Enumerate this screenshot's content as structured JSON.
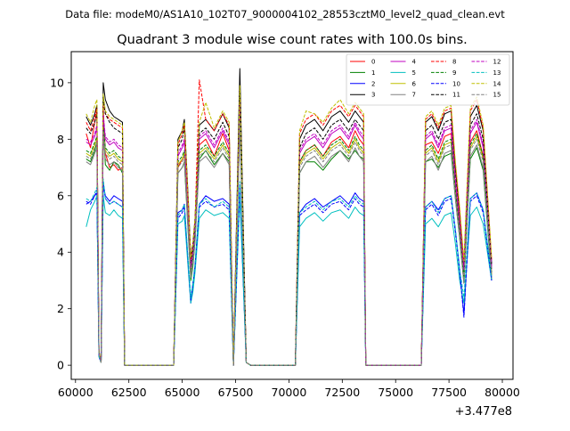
{
  "figure": {
    "suptitle": "Data file: modeM0/AS1A10_102T07_9000004102_28553cztM0_level2_quad_clean.evt",
    "title": "Quadrant 3 module wise count rates with 100.0s bins."
  },
  "chart_data": {
    "type": "line",
    "title": "Quadrant 3 module wise count rates with 100.0s bins.",
    "xlabel": "",
    "ylabel": "",
    "x_offset_label": "+3.477e8",
    "xlim": [
      59800,
      80500
    ],
    "ylim": [
      -0.5,
      11.1
    ],
    "xticks": [
      60000,
      62500,
      65000,
      67500,
      70000,
      72500,
      75000,
      77500,
      80000
    ],
    "xtick_labels": [
      "60000",
      "62500",
      "65000",
      "67500",
      "70000",
      "72500",
      "75000",
      "77500",
      "80000"
    ],
    "yticks": [
      0,
      2,
      4,
      6,
      8,
      10
    ],
    "ytick_labels": [
      "0",
      "2",
      "4",
      "6",
      "8",
      "10"
    ],
    "grid": false,
    "legend_position": "top-right",
    "legend_columns": 4,
    "series": [
      {
        "name": "0",
        "color": "#ff0000",
        "dash": "solid",
        "values": [
          8.2,
          7.7,
          8.6,
          9.0,
          0.5,
          0.1,
          9.1,
          7.5,
          7.0,
          7.1,
          6.9,
          7.0,
          0,
          0,
          0,
          0,
          7.0,
          7.3,
          7.4,
          4.8,
          3.2,
          3.7,
          4.6,
          7.8,
          8.0,
          7.4,
          8.2,
          7.6,
          0,
          9.5,
          0.1,
          0,
          0,
          0,
          0,
          0,
          7.2,
          7.6,
          7.8,
          7.4,
          7.9,
          8.1,
          7.7,
          8.3,
          8.0,
          7.8,
          0,
          0,
          0,
          0,
          0,
          0,
          0,
          0,
          7.8,
          7.9,
          7.5,
          8.1,
          8.2,
          6.3,
          4.8,
          3.1,
          7.9,
          8.3,
          7.4,
          3.2
        ]
      },
      {
        "name": "1",
        "color": "#008000",
        "dash": "solid",
        "values": [
          7.3,
          7.2,
          7.6,
          7.9,
          0.4,
          0.1,
          8.5,
          7.1,
          6.9,
          7.2,
          7.1,
          6.8,
          0,
          0,
          0,
          0,
          6.8,
          7.0,
          7.2,
          4.4,
          3.0,
          3.5,
          4.4,
          7.3,
          7.6,
          7.1,
          7.5,
          7.2,
          0,
          8.6,
          0.1,
          0,
          0,
          0,
          0,
          0,
          6.8,
          7.2,
          7.2,
          6.9,
          7.3,
          7.6,
          7.3,
          7.6,
          7.4,
          7.3,
          0,
          0,
          0,
          0,
          0,
          0,
          0,
          0,
          7.2,
          7.3,
          7.0,
          7.4,
          7.5,
          5.9,
          4.5,
          2.9,
          7.3,
          7.7,
          6.9,
          3.0
        ]
      },
      {
        "name": "2",
        "color": "#0000ff",
        "dash": "solid",
        "values": [
          5.7,
          5.8,
          6.0,
          6.1,
          0.3,
          0.1,
          6.4,
          6.0,
          5.8,
          6.0,
          5.9,
          5.8,
          0,
          0,
          0,
          0,
          5.4,
          5.5,
          5.7,
          3.3,
          2.2,
          2.8,
          3.5,
          5.7,
          6.0,
          5.8,
          5.9,
          5.7,
          0,
          6.4,
          0.1,
          0,
          0,
          0,
          0,
          0,
          5.4,
          5.7,
          5.9,
          5.6,
          5.8,
          6.0,
          5.7,
          6.1,
          5.9,
          5.8,
          0,
          0,
          0,
          0,
          0,
          0,
          0,
          0,
          5.6,
          5.8,
          5.5,
          5.9,
          6.0,
          4.8,
          3.4,
          1.8,
          5.9,
          6.1,
          5.5,
          3.1
        ]
      },
      {
        "name": "3",
        "color": "#000000",
        "dash": "solid",
        "values": [
          8.8,
          8.5,
          8.9,
          9.2,
          0.5,
          0.1,
          10.0,
          9.4,
          9.0,
          8.8,
          8.7,
          8.6,
          0,
          0,
          0,
          0,
          8.0,
          8.3,
          8.7,
          5.6,
          3.8,
          4.3,
          5.2,
          8.5,
          8.7,
          8.3,
          8.9,
          8.4,
          0,
          10.5,
          0.1,
          0,
          0,
          0,
          0,
          0,
          8.0,
          8.5,
          8.7,
          8.3,
          8.8,
          9.0,
          8.6,
          9.0,
          8.8,
          8.6,
          0,
          0,
          0,
          0,
          0,
          0,
          0,
          0,
          8.6,
          8.8,
          8.3,
          8.9,
          9.0,
          7.0,
          5.4,
          3.5,
          8.8,
          9.2,
          8.3,
          3.6
        ]
      },
      {
        "name": "4",
        "color": "#c000c0",
        "dash": "solid",
        "values": [
          7.9,
          7.8,
          8.1,
          8.4,
          0.4,
          0.1,
          8.8,
          8.0,
          7.8,
          7.9,
          7.7,
          7.6,
          0,
          0,
          0,
          0,
          7.4,
          7.7,
          7.9,
          5.0,
          3.4,
          3.9,
          4.9,
          8.0,
          8.2,
          7.7,
          8.3,
          7.8,
          0,
          9.2,
          0.1,
          0,
          0,
          0,
          0,
          0,
          7.5,
          7.9,
          8.1,
          7.7,
          8.2,
          8.4,
          8.0,
          8.5,
          8.2,
          8.0,
          0,
          0,
          0,
          0,
          0,
          0,
          0,
          0,
          8.0,
          8.2,
          7.7,
          8.3,
          8.4,
          6.5,
          5.0,
          3.3,
          8.2,
          8.6,
          7.7,
          3.4
        ]
      },
      {
        "name": "5",
        "color": "#00bfbf",
        "dash": "solid",
        "values": [
          4.9,
          5.5,
          5.8,
          6.0,
          0.3,
          0.1,
          6.0,
          5.4,
          5.3,
          5.5,
          5.3,
          5.2,
          0,
          0,
          0,
          0,
          5.0,
          5.1,
          5.3,
          3.2,
          2.2,
          2.6,
          3.3,
          5.2,
          5.5,
          5.3,
          5.4,
          5.2,
          0,
          6.0,
          0.1,
          0,
          0,
          0,
          0,
          0,
          4.9,
          5.2,
          5.4,
          5.1,
          5.4,
          5.5,
          5.2,
          5.6,
          5.4,
          5.3,
          0,
          0,
          0,
          0,
          0,
          0,
          0,
          0,
          5.0,
          5.2,
          4.9,
          5.3,
          5.4,
          4.3,
          3.0,
          2.2,
          5.3,
          5.6,
          5.0,
          3.0
        ]
      },
      {
        "name": "6",
        "color": "#bfbf00",
        "dash": "solid",
        "values": [
          7.5,
          7.4,
          7.8,
          8.0,
          0.4,
          0.1,
          8.4,
          7.6,
          7.4,
          7.5,
          7.3,
          7.2,
          0,
          0,
          0,
          0,
          7.1,
          7.3,
          7.5,
          4.7,
          3.2,
          3.7,
          4.6,
          7.5,
          7.7,
          7.3,
          7.8,
          7.4,
          0,
          8.8,
          0.1,
          0,
          0,
          0,
          0,
          0,
          7.1,
          7.5,
          7.7,
          7.3,
          7.7,
          7.9,
          7.5,
          8.0,
          7.7,
          7.5,
          0,
          0,
          0,
          0,
          0,
          0,
          0,
          0,
          7.5,
          7.7,
          7.2,
          7.8,
          7.9,
          6.1,
          4.7,
          3.0,
          7.7,
          8.1,
          7.3,
          3.2
        ]
      },
      {
        "name": "7",
        "color": "#808080",
        "dash": "solid",
        "values": [
          7.2,
          7.1,
          7.5,
          7.7,
          0.4,
          0.1,
          8.1,
          7.3,
          7.1,
          7.2,
          7.0,
          6.9,
          0,
          0,
          0,
          0,
          6.8,
          7.0,
          7.2,
          4.5,
          3.1,
          3.6,
          4.4,
          7.2,
          7.4,
          7.0,
          7.5,
          7.1,
          0,
          8.4,
          0.1,
          0,
          0,
          0,
          0,
          0,
          6.8,
          7.2,
          7.4,
          7.0,
          7.4,
          7.6,
          7.2,
          7.7,
          7.4,
          7.2,
          0,
          0,
          0,
          0,
          0,
          0,
          0,
          0,
          7.2,
          7.4,
          6.9,
          7.5,
          7.6,
          5.9,
          4.5,
          2.9,
          7.4,
          7.8,
          7.0,
          3.1
        ]
      },
      {
        "name": "8",
        "color": "#ff0000",
        "dash": "dashed",
        "values": [
          8.6,
          8.3,
          8.8,
          9.1,
          0.5,
          0.1,
          9.3,
          8.9,
          8.7,
          8.6,
          8.5,
          8.4,
          0,
          0,
          0,
          0,
          7.8,
          8.2,
          8.5,
          5.4,
          3.7,
          4.2,
          5.1,
          10.1,
          8.7,
          8.3,
          8.9,
          8.5,
          0,
          9.8,
          0.1,
          0,
          0,
          0,
          0,
          0,
          8.2,
          8.7,
          8.9,
          8.5,
          9.0,
          9.2,
          8.8,
          9.2,
          9.0,
          8.8,
          0,
          0,
          0,
          0,
          0,
          0,
          0,
          0,
          8.7,
          8.9,
          8.4,
          9.0,
          9.1,
          7.1,
          5.5,
          3.6,
          9.0,
          9.4,
          8.4,
          3.7
        ]
      },
      {
        "name": "9",
        "color": "#008000",
        "dash": "dashed",
        "values": [
          7.6,
          7.5,
          7.9,
          8.1,
          0.4,
          0.1,
          8.5,
          7.7,
          7.5,
          7.6,
          7.4,
          7.3,
          0,
          0,
          0,
          0,
          7.2,
          7.4,
          7.6,
          4.8,
          3.3,
          3.8,
          4.7,
          7.6,
          7.8,
          7.4,
          7.9,
          7.5,
          0,
          8.9,
          0.1,
          0,
          0,
          0,
          0,
          0,
          7.2,
          7.6,
          7.8,
          7.4,
          7.8,
          8.0,
          7.6,
          8.1,
          7.8,
          7.6,
          0,
          0,
          0,
          0,
          0,
          0,
          0,
          0,
          7.6,
          7.8,
          7.3,
          7.9,
          8.0,
          6.2,
          4.8,
          3.1,
          7.8,
          8.2,
          7.4,
          3.3
        ]
      },
      {
        "name": "10",
        "color": "#0000ff",
        "dash": "dashed",
        "values": [
          5.8,
          5.7,
          6.0,
          6.2,
          0.3,
          0.1,
          6.5,
          5.9,
          5.7,
          5.8,
          5.7,
          5.6,
          0,
          0,
          0,
          0,
          5.2,
          5.4,
          5.6,
          3.4,
          2.3,
          2.9,
          3.5,
          5.6,
          5.8,
          5.6,
          5.7,
          5.5,
          0,
          6.3,
          0.1,
          0,
          0,
          0,
          0,
          0,
          5.3,
          5.5,
          5.7,
          5.4,
          5.7,
          5.8,
          5.5,
          5.9,
          5.7,
          5.6,
          0,
          0,
          0,
          0,
          0,
          0,
          0,
          0,
          5.5,
          5.7,
          5.3,
          5.8,
          5.9,
          4.7,
          3.3,
          1.7,
          5.8,
          6.0,
          5.4,
          3.0
        ]
      },
      {
        "name": "11",
        "color": "#000000",
        "dash": "dashed",
        "values": [
          8.4,
          8.2,
          8.6,
          8.9,
          0.5,
          0.1,
          9.5,
          8.9,
          8.6,
          8.4,
          8.3,
          8.2,
          0,
          0,
          0,
          0,
          7.7,
          8.0,
          8.4,
          5.4,
          3.6,
          4.1,
          5.0,
          8.2,
          8.4,
          8.0,
          8.6,
          8.1,
          0,
          10.0,
          0.1,
          0,
          0,
          0,
          0,
          0,
          7.7,
          8.2,
          8.4,
          8.0,
          8.5,
          8.7,
          8.3,
          8.7,
          8.5,
          8.3,
          0,
          0,
          0,
          0,
          0,
          0,
          0,
          0,
          8.3,
          8.5,
          8.0,
          8.6,
          8.7,
          6.8,
          5.2,
          3.4,
          8.5,
          8.9,
          8.0,
          3.5
        ]
      },
      {
        "name": "12",
        "color": "#c000c0",
        "dash": "dashed",
        "values": [
          8.0,
          7.9,
          8.2,
          8.5,
          0.4,
          0.1,
          8.9,
          8.1,
          7.9,
          8.0,
          7.8,
          7.7,
          0,
          0,
          0,
          0,
          7.5,
          7.8,
          8.0,
          5.1,
          3.5,
          4.0,
          5.0,
          8.1,
          8.3,
          7.8,
          8.4,
          7.9,
          0,
          9.3,
          0.1,
          0,
          0,
          0,
          0,
          0,
          7.6,
          8.0,
          8.2,
          7.8,
          8.3,
          8.5,
          8.1,
          8.6,
          8.3,
          8.1,
          0,
          0,
          0,
          0,
          0,
          0,
          0,
          0,
          8.1,
          8.3,
          7.8,
          8.4,
          8.5,
          6.6,
          5.1,
          3.4,
          8.3,
          8.7,
          7.8,
          3.5
        ]
      },
      {
        "name": "13",
        "color": "#00bfbf",
        "dash": "dashed",
        "values": [
          5.9,
          5.8,
          6.1,
          6.3,
          0.3,
          0.1,
          6.6,
          5.9,
          5.7,
          5.8,
          5.7,
          5.6,
          0,
          0,
          0,
          0,
          5.3,
          5.5,
          5.7,
          3.5,
          2.4,
          2.9,
          3.6,
          5.7,
          5.9,
          5.6,
          5.8,
          5.6,
          0,
          6.5,
          0.1,
          0,
          0,
          0,
          0,
          0,
          5.4,
          5.6,
          5.8,
          5.5,
          5.8,
          5.9,
          5.6,
          6.0,
          5.8,
          5.7,
          0,
          0,
          0,
          0,
          0,
          0,
          0,
          0,
          5.6,
          5.8,
          5.4,
          5.9,
          6.0,
          4.8,
          3.4,
          2.4,
          5.9,
          6.1,
          5.5,
          3.1
        ]
      },
      {
        "name": "14",
        "color": "#bfbf00",
        "dash": "dashed",
        "values": [
          8.9,
          8.6,
          9.2,
          9.4,
          0.5,
          0.1,
          9.6,
          9.0,
          8.8,
          8.7,
          8.6,
          8.5,
          0,
          0,
          0,
          0,
          7.9,
          8.3,
          8.6,
          5.5,
          3.8,
          4.3,
          5.2,
          8.6,
          9.3,
          8.4,
          9.0,
          8.6,
          0,
          9.9,
          0.1,
          0,
          0,
          0,
          0,
          0,
          8.3,
          9.0,
          8.9,
          8.6,
          9.1,
          9.4,
          8.9,
          9.3,
          9.1,
          8.9,
          0,
          0,
          0,
          0,
          0,
          0,
          0,
          0,
          8.8,
          9.0,
          8.5,
          9.1,
          9.2,
          7.2,
          5.6,
          3.7,
          9.1,
          9.5,
          8.5,
          3.8
        ]
      },
      {
        "name": "15",
        "color": "#808080",
        "dash": "dashed",
        "values": [
          7.4,
          7.3,
          7.7,
          7.9,
          0.4,
          0.1,
          8.3,
          7.5,
          7.3,
          7.4,
          7.2,
          7.1,
          0,
          0,
          0,
          0,
          7.0,
          7.2,
          7.4,
          4.6,
          3.2,
          3.7,
          4.5,
          7.4,
          7.6,
          7.2,
          7.7,
          7.3,
          0,
          8.6,
          0.1,
          0,
          0,
          0,
          0,
          0,
          7.0,
          7.4,
          7.6,
          7.2,
          7.6,
          7.8,
          7.4,
          7.9,
          7.6,
          7.4,
          0,
          0,
          0,
          0,
          0,
          0,
          0,
          0,
          7.4,
          7.6,
          7.1,
          7.7,
          7.8,
          6.0,
          4.6,
          3.0,
          7.6,
          8.0,
          7.2,
          3.2
        ]
      }
    ],
    "x": [
      60500,
      60700,
      60900,
      61000,
      61100,
      61200,
      61300,
      61400,
      61600,
      61800,
      62000,
      62200,
      62300,
      63500,
      64500,
      64600,
      64800,
      65000,
      65100,
      65300,
      65400,
      65500,
      65600,
      65800,
      66100,
      66500,
      66900,
      67200,
      67400,
      67700,
      68000,
      68200,
      68300,
      70000,
      70200,
      70300,
      70500,
      70800,
      71200,
      71600,
      72000,
      72400,
      72800,
      73100,
      73300,
      73500,
      73600,
      74000,
      74500,
      75000,
      75500,
      76000,
      76100,
      76200,
      76400,
      76700,
      77000,
      77300,
      77600,
      77800,
      78000,
      78200,
      78500,
      78800,
      79100,
      79500
    ]
  }
}
